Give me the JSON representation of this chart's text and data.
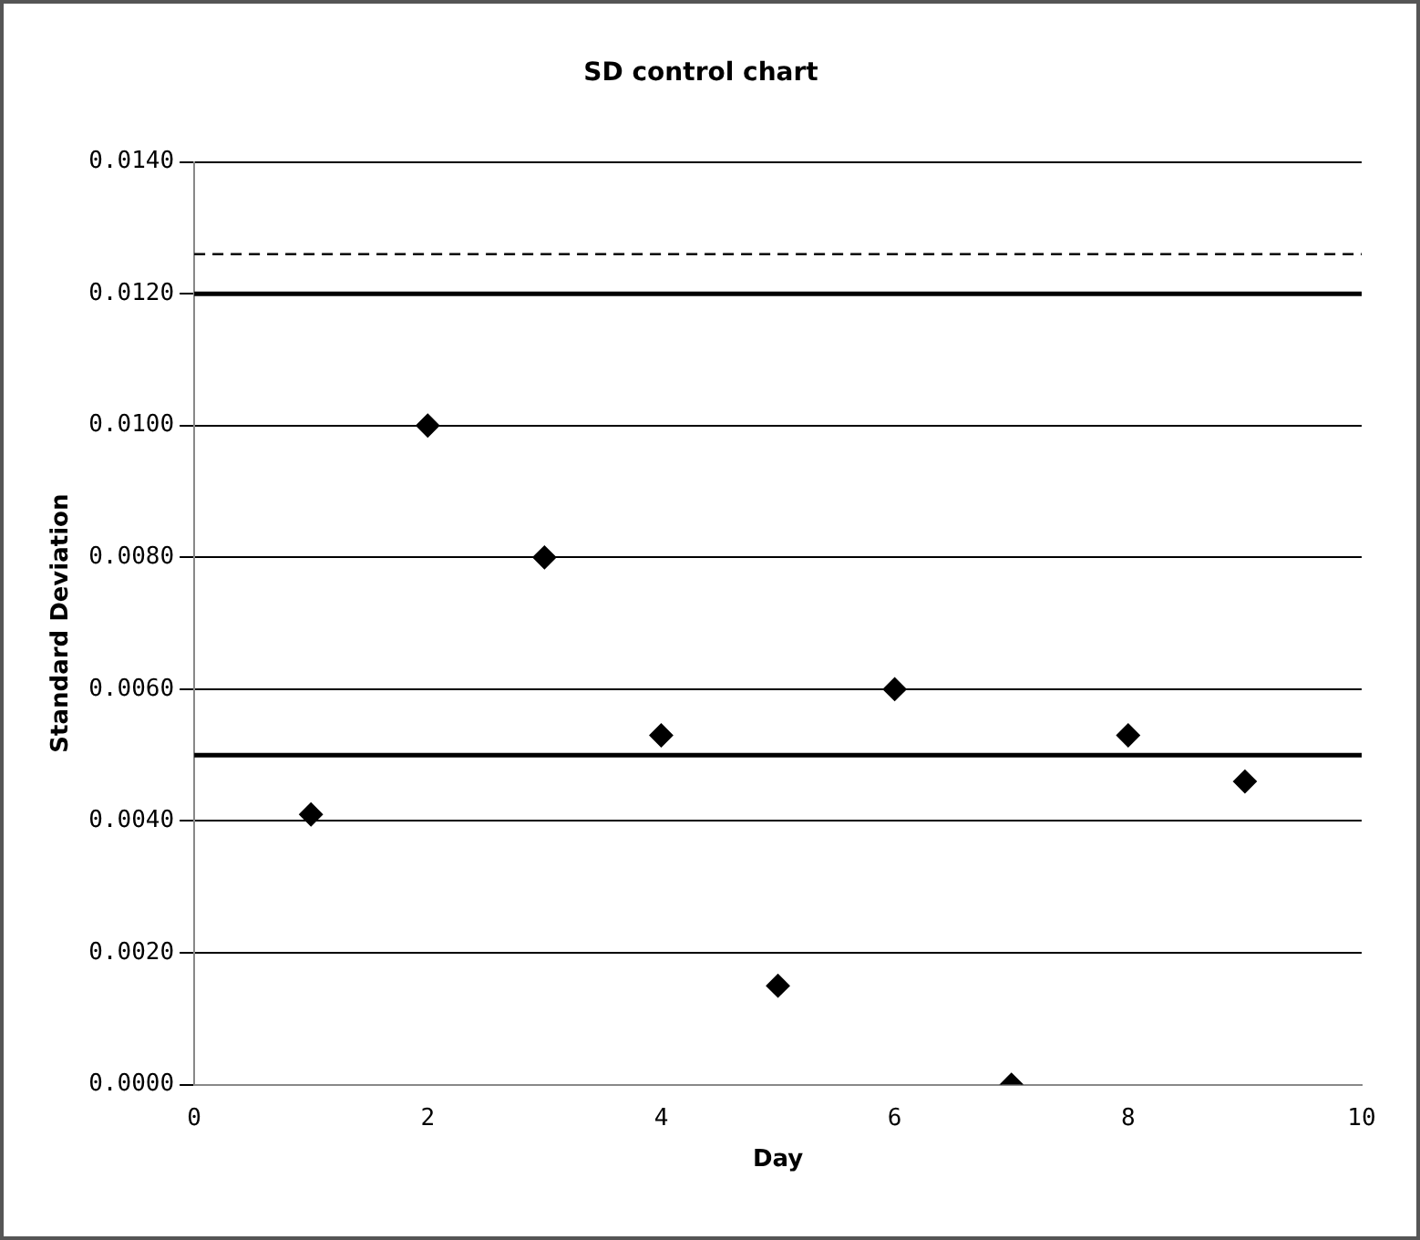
{
  "chart_data": {
    "type": "scatter",
    "title": "SD control chart",
    "xlabel": "Day",
    "ylabel": "Standard Deviation",
    "x": [
      1,
      2,
      3,
      4,
      5,
      6,
      7,
      8,
      9
    ],
    "values": [
      0.0041,
      0.01,
      0.008,
      0.0053,
      0.0015,
      0.006,
      0.0,
      0.0053,
      0.0046
    ],
    "color": "#000000",
    "marker": "diamond",
    "grid": "y",
    "legend": false,
    "xlim": [
      0,
      10
    ],
    "xticks": [
      0,
      2,
      4,
      6,
      8,
      10
    ],
    "ylim": [
      0,
      0.014
    ],
    "yticks": [
      {
        "value": 0,
        "label": "0.0000"
      },
      {
        "value": 0.002,
        "label": "0.0020"
      },
      {
        "value": 0.004,
        "label": "0.0040"
      },
      {
        "value": 0.006,
        "label": "0.0060"
      },
      {
        "value": 0.008,
        "label": "0.0080"
      },
      {
        "value": 0.01,
        "label": "0.0100"
      },
      {
        "value": 0.012,
        "label": "0.0120"
      },
      {
        "value": 0.014,
        "label": "0.0140"
      }
    ],
    "ref_lines": [
      {
        "axis": "y",
        "value": 0.0126,
        "line_style": "dashed",
        "color": "#000000"
      },
      {
        "axis": "y",
        "value": 0.012,
        "line_style": "solid",
        "color": "#000000"
      },
      {
        "axis": "y",
        "value": 0.005,
        "line_style": "solid",
        "color": "#000000"
      }
    ]
  }
}
